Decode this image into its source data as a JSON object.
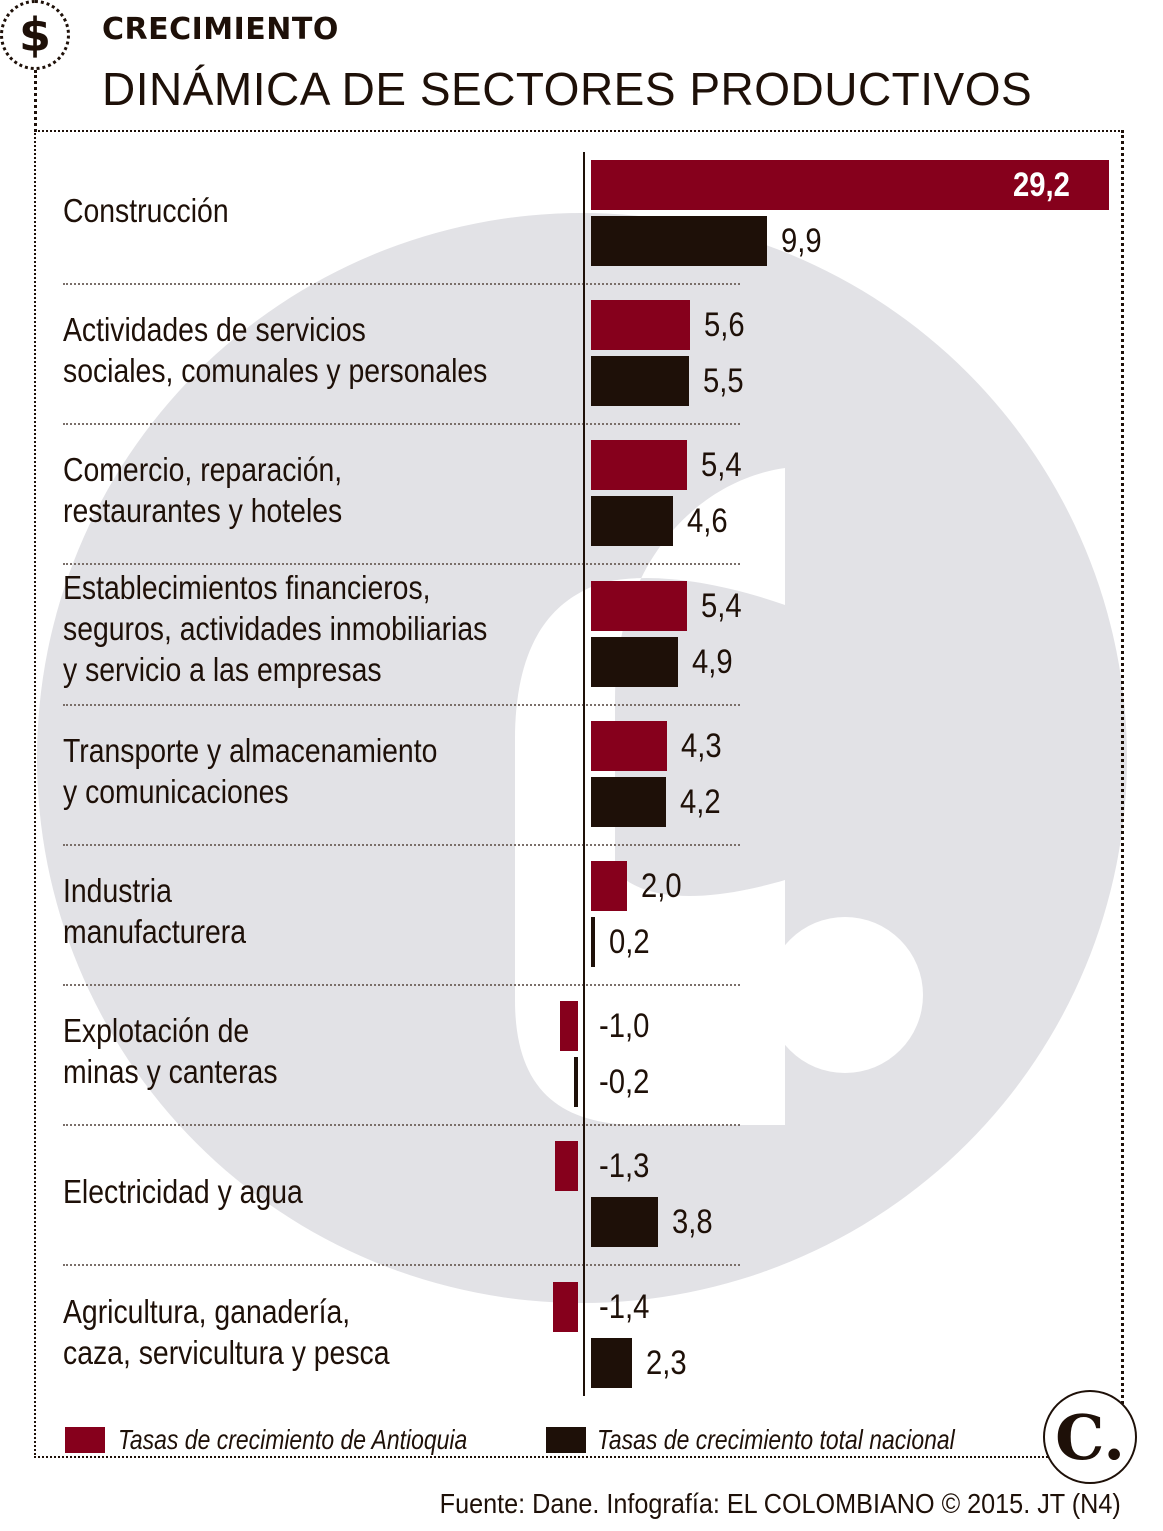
{
  "header": {
    "icon": "dollar-icon",
    "icon_glyph": "$",
    "kicker": "CRECIMIENTO",
    "title": "DINÁMICA DE SECTORES PRODUCTIVOS"
  },
  "colors": {
    "antioquia": "#86001c",
    "nacional": "#1e1008",
    "watermark": "#e2e2e6"
  },
  "chart_data": {
    "type": "bar",
    "orientation": "horizontal",
    "title": "DINÁMICA DE SECTORES PRODUCTIVOS",
    "subtitle": "CRECIMIENTO",
    "xlabel": "",
    "ylabel": "",
    "grid": false,
    "legend_position": "bottom",
    "categories": [
      "Construcción",
      "Actividades de servicios\nsociales, comunales y personales",
      "Comercio, reparación,\nrestaurantes y hoteles",
      "Establecimientos financieros,\nseguros, actividades inmobiliarias\ny servicio a las empresas",
      "Transporte y almacenamiento\ny comunicaciones",
      "Industria\nmanufacturera",
      "Explotación de\nminas y canteras",
      "Electricidad y agua",
      "Agricultura, ganadería,\ncaza, servicultura y pesca"
    ],
    "series": [
      {
        "name": "Tasas de crecimiento de Antioquia",
        "values": [
          29.2,
          5.6,
          5.4,
          5.4,
          4.3,
          2.0,
          -1.0,
          -1.3,
          -1.4
        ],
        "labels": [
          "29,2",
          "5,6",
          "5,4",
          "5,4",
          "4,3",
          "2,0",
          "-1,0",
          "-1,3",
          "-1,4"
        ]
      },
      {
        "name": "Tasas de crecimiento total nacional",
        "values": [
          9.9,
          5.5,
          4.6,
          4.9,
          4.2,
          0.2,
          -0.2,
          3.8,
          2.3
        ],
        "labels": [
          "9,9",
          "5,5",
          "4,6",
          "4,9",
          "4,2",
          "0,2",
          "-0,2",
          "3,8",
          "2,3"
        ]
      }
    ],
    "xlim": [
      -1.4,
      29.2
    ]
  },
  "legend": [
    {
      "label": "Tasas de crecimiento de Antioquia"
    },
    {
      "label": "Tasas de crecimiento total nacional"
    }
  ],
  "footer": {
    "logo_glyph": "C.",
    "source": "Fuente: Dane. Infografía: EL COLOMBIANO © 2015. JT (N4)"
  }
}
